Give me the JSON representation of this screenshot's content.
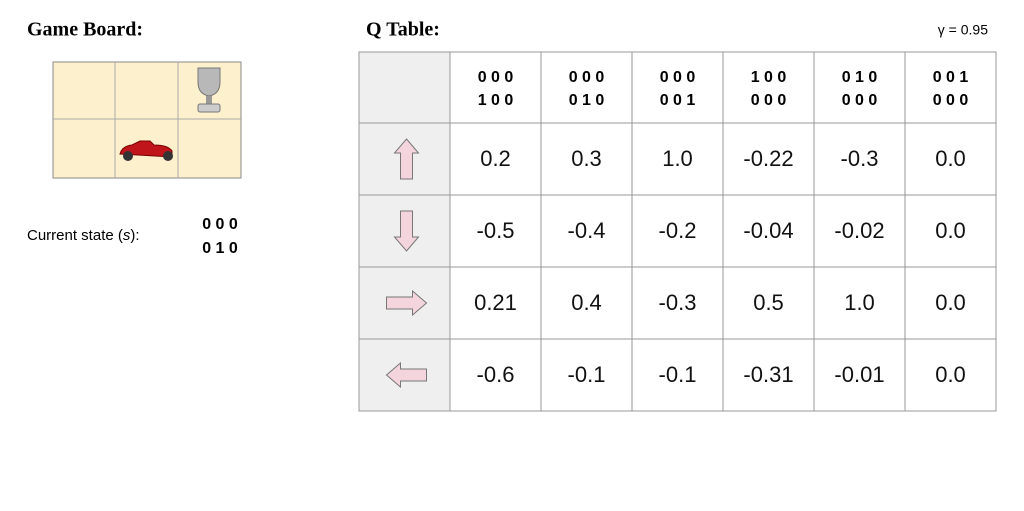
{
  "board": {
    "title": "Game Board:",
    "state_label": {
      "before": "Current state (",
      "variable": "s",
      "after": "):"
    },
    "state": [
      "0 0 0",
      "0 1 0"
    ]
  },
  "qtable": {
    "title": "Q Table:",
    "gamma": "γ = 0.95",
    "columns": [
      [
        "0 0 0",
        "1 0 0"
      ],
      [
        "0 0 0",
        "0 1 0"
      ],
      [
        "0 0 0",
        "0 0 1"
      ],
      [
        "1 0 0",
        "0 0 0"
      ],
      [
        "0 1 0",
        "0 0 0"
      ],
      [
        "0 0 1",
        "0 0 0"
      ]
    ],
    "rows": [
      [
        "0.2",
        "0.3",
        "1.0",
        "-0.22",
        "-0.3",
        "0.0"
      ],
      [
        "-0.5",
        "-0.4",
        "-0.2",
        "-0.04",
        "-0.02",
        "0.0"
      ],
      [
        "0.21",
        "0.4",
        "-0.3",
        "0.5",
        "1.0",
        "0.0"
      ],
      [
        "-0.6",
        "-0.1",
        "-0.1",
        "-0.31",
        "-0.01",
        "0.0"
      ]
    ]
  }
}
